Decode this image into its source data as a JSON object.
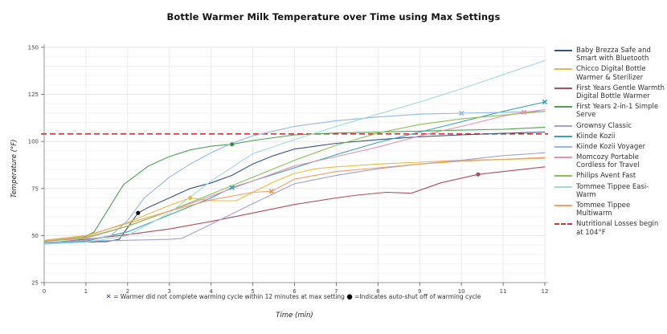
{
  "title": "Bottle Warmer Milk Temperature over Time using Max Settings",
  "footnote": {
    "x_symbol": "✕",
    "x_note": " = Warmer did not complete warming cycle within 12 minutes at max setting ",
    "dot_symbol": "●",
    "dot_note": " =Indicates auto-shut off of warming cycle"
  },
  "chart_data": {
    "type": "line",
    "title": "Bottle Warmer Milk Temperature over Time using Max Settings",
    "xlabel": "Time (min)",
    "ylabel": "Temperature (°F)",
    "xlim": [
      0,
      12
    ],
    "ylim": [
      25,
      150
    ],
    "x_ticks": [
      0,
      1,
      2,
      3,
      4,
      5,
      6,
      7,
      8,
      9,
      10,
      11,
      12
    ],
    "y_ticks": [
      25,
      50,
      75,
      100,
      125,
      150
    ],
    "grid": true,
    "legend_position": "right",
    "reference_line": {
      "label": "Nutritional Losses begin at 104°F",
      "y": 104,
      "color": "#c9353f",
      "style": "dashed"
    },
    "series": [
      {
        "name": "Baby Brezza Safe and Smart with Bluetooth",
        "color": "#35537f",
        "points": [
          [
            0,
            46
          ],
          [
            0.5,
            46.3
          ],
          [
            1,
            46.6
          ],
          [
            1.5,
            46.8
          ],
          [
            1.8,
            48
          ],
          [
            2.25,
            62
          ],
          [
            2.5,
            65
          ],
          [
            3,
            70
          ],
          [
            3.5,
            75
          ],
          [
            4,
            78
          ],
          [
            4.5,
            82
          ],
          [
            5,
            88
          ],
          [
            5.5,
            92.5
          ],
          [
            6,
            96
          ],
          [
            6.5,
            97.5
          ],
          [
            7,
            99
          ],
          [
            8,
            101
          ],
          [
            9,
            102.5
          ],
          [
            10,
            103.5
          ],
          [
            11,
            104.3
          ],
          [
            12,
            105
          ]
        ]
      },
      {
        "name": "Chicco Digital Bottle Warmer & Sterilizer",
        "color": "#e7bc3f",
        "points": [
          [
            0,
            47.5
          ],
          [
            1,
            49.5
          ],
          [
            2,
            57
          ],
          [
            3,
            66
          ],
          [
            3.5,
            70
          ],
          [
            4,
            68.5
          ],
          [
            4.6,
            68.5
          ],
          [
            5,
            73
          ],
          [
            5.5,
            78.5
          ],
          [
            6,
            83
          ],
          [
            6.5,
            85.5
          ],
          [
            7,
            86.5
          ],
          [
            8,
            88
          ],
          [
            9,
            89
          ],
          [
            10,
            90
          ],
          [
            11,
            90.5
          ],
          [
            12,
            91
          ]
        ]
      },
      {
        "name": "First Years Gentle Warmth Digital Bottle Warmer",
        "color": "#a8505e",
        "points": [
          [
            0,
            46
          ],
          [
            1,
            48
          ],
          [
            2,
            50.5
          ],
          [
            3,
            53.5
          ],
          [
            4,
            57.5
          ],
          [
            5,
            62
          ],
          [
            6,
            66.5
          ],
          [
            7,
            70
          ],
          [
            7.5,
            71.5
          ],
          [
            8.2,
            73
          ],
          [
            8.8,
            72.5
          ],
          [
            9.5,
            78
          ],
          [
            10.4,
            82.5
          ],
          [
            11,
            84
          ],
          [
            12,
            86.5
          ]
        ]
      },
      {
        "name": "First Years 2-in-1 Simple Serve",
        "color": "#4aa351",
        "points": [
          [
            0,
            46
          ],
          [
            0.8,
            47.5
          ],
          [
            1.2,
            52
          ],
          [
            1.9,
            77
          ],
          [
            2.5,
            87
          ],
          [
            3,
            92
          ],
          [
            3.5,
            95.5
          ],
          [
            4,
            97.5
          ],
          [
            4.5,
            98.5
          ],
          [
            5,
            100.5
          ],
          [
            6,
            103.5
          ],
          [
            7,
            104.5
          ],
          [
            8,
            105
          ],
          [
            9,
            105.5
          ],
          [
            10,
            106
          ],
          [
            11,
            106.5
          ],
          [
            12,
            107.5
          ]
        ]
      },
      {
        "name": "Grownsy Classic",
        "color": "#a89fd0",
        "points": [
          [
            0,
            46.5
          ],
          [
            1,
            47
          ],
          [
            2,
            47.5
          ],
          [
            3,
            48
          ],
          [
            3.3,
            48.5
          ],
          [
            4,
            56
          ],
          [
            5,
            67
          ],
          [
            6,
            77.5
          ],
          [
            7,
            82
          ],
          [
            8,
            85.5
          ],
          [
            9,
            88
          ],
          [
            10,
            90
          ],
          [
            11,
            92.5
          ],
          [
            12,
            94
          ]
        ]
      },
      {
        "name": "Kiinde Kozii",
        "color": "#39a3b2",
        "points": [
          [
            0,
            45.5
          ],
          [
            1,
            47
          ],
          [
            2,
            52
          ],
          [
            3,
            61
          ],
          [
            4,
            70
          ],
          [
            4.5,
            75.5
          ],
          [
            5,
            79
          ],
          [
            6,
            86
          ],
          [
            7,
            93
          ],
          [
            8,
            99.5
          ],
          [
            9,
            105
          ],
          [
            10,
            110.5
          ],
          [
            11,
            116
          ],
          [
            12,
            121
          ]
        ]
      },
      {
        "name": "Kiinde Kozii Voyager",
        "color": "#92b8e2",
        "points": [
          [
            0,
            46
          ],
          [
            1,
            47.5
          ],
          [
            1.6,
            50
          ],
          [
            2,
            58
          ],
          [
            2.4,
            70
          ],
          [
            3,
            81
          ],
          [
            3.5,
            88
          ],
          [
            4,
            94
          ],
          [
            4.5,
            99
          ],
          [
            5,
            103
          ],
          [
            5.5,
            105.5
          ],
          [
            6,
            108
          ],
          [
            7,
            111
          ],
          [
            8,
            113
          ],
          [
            9,
            114.5
          ],
          [
            10,
            115
          ],
          [
            11,
            115.5
          ],
          [
            12,
            116
          ]
        ]
      },
      {
        "name": "Momcozy Portable Cordless for Travel",
        "color": "#e391b4",
        "points": [
          [
            0,
            47
          ],
          [
            1,
            48.5
          ],
          [
            2,
            55
          ],
          [
            3,
            63
          ],
          [
            4,
            71
          ],
          [
            5,
            79
          ],
          [
            6,
            87
          ],
          [
            7,
            92
          ],
          [
            8,
            97
          ],
          [
            9,
            103
          ],
          [
            10,
            108
          ],
          [
            11,
            113.5
          ],
          [
            11.5,
            115.5
          ],
          [
            12,
            117
          ]
        ]
      },
      {
        "name": "Philips Avent Fast",
        "color": "#88c057",
        "points": [
          [
            0,
            47
          ],
          [
            1,
            49
          ],
          [
            2,
            55
          ],
          [
            3,
            63
          ],
          [
            4,
            72
          ],
          [
            5,
            81
          ],
          [
            6,
            90
          ],
          [
            7,
            98
          ],
          [
            8,
            104.5
          ],
          [
            9,
            109
          ],
          [
            10,
            112
          ],
          [
            11,
            114
          ],
          [
            12,
            116
          ]
        ]
      },
      {
        "name": "Tommee Tippee Easi-Warm",
        "color": "#9ed8de",
        "points": [
          [
            0,
            45.5
          ],
          [
            1,
            46.5
          ],
          [
            2,
            50
          ],
          [
            3,
            62
          ],
          [
            4,
            79
          ],
          [
            5,
            93.5
          ],
          [
            6,
            101
          ],
          [
            7,
            108
          ],
          [
            8,
            114.5
          ],
          [
            9,
            121
          ],
          [
            10,
            128
          ],
          [
            11,
            135.5
          ],
          [
            12,
            143
          ]
        ]
      },
      {
        "name": "Tommee Tippee Multiwarm",
        "color": "#eda263",
        "points": [
          [
            0,
            47.5
          ],
          [
            1,
            50
          ],
          [
            2,
            56.5
          ],
          [
            3,
            63
          ],
          [
            4,
            69
          ],
          [
            5,
            73
          ],
          [
            5.45,
            73.5
          ],
          [
            6,
            80
          ],
          [
            7,
            84
          ],
          [
            8,
            86
          ],
          [
            9,
            88
          ],
          [
            10,
            89.5
          ],
          [
            11,
            90.5
          ],
          [
            12,
            91.5
          ]
        ]
      }
    ],
    "markers": [
      {
        "series": "Baby Brezza Safe and Smart with Bluetooth",
        "x": 2.25,
        "y": 62,
        "shape": "dot",
        "color": "#111111"
      },
      {
        "series": "Chicco Digital Bottle Warmer & Sterilizer",
        "x": 3.5,
        "y": 70,
        "shape": "dot",
        "color": "#e7bc3f"
      },
      {
        "series": "First Years 2-in-1 Simple Serve",
        "x": 4.5,
        "y": 98.5,
        "shape": "dot",
        "color": "#3f8a46"
      },
      {
        "series": "Kiinde Kozii",
        "x": 4.5,
        "y": 75.5,
        "shape": "x",
        "color": "#39a3b2"
      },
      {
        "series": "Tommee Tippee Multiwarm",
        "x": 5.45,
        "y": 73.5,
        "shape": "x",
        "color": "#e8954a"
      },
      {
        "series": "Kiinde Kozii Voyager",
        "x": 10,
        "y": 115,
        "shape": "x",
        "color": "#92b8e2"
      },
      {
        "series": "First Years Gentle Warmth Digital Bottle Warmer",
        "x": 10.4,
        "y": 82.5,
        "shape": "dot",
        "color": "#a8505e"
      },
      {
        "series": "Momcozy Portable Cordless for Travel",
        "x": 11.5,
        "y": 115.5,
        "shape": "x",
        "color": "#e391b4"
      },
      {
        "series": "Kiinde Kozii",
        "x": 12,
        "y": 121,
        "shape": "x",
        "color": "#39a3b2"
      }
    ]
  }
}
